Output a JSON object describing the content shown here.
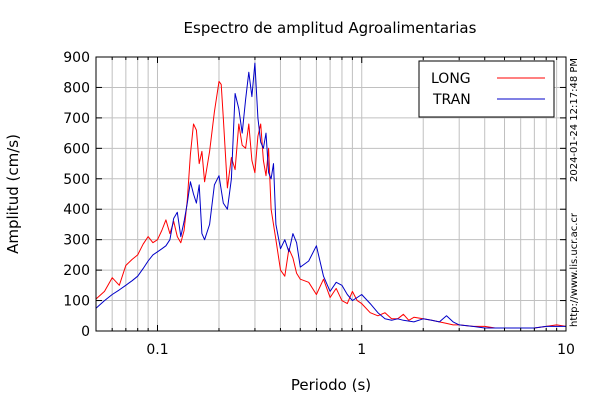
{
  "chart_data": {
    "type": "line",
    "title": "Espectro de amplitud Agroalimentarias",
    "xlabel": "Periodo (s)",
    "ylabel": "Amplitud (cm/s)",
    "x_scale": "log",
    "xlim": [
      0.05,
      10
    ],
    "ylim": [
      0,
      900
    ],
    "x_ticks": [
      {
        "value": 0.1,
        "label": "0.1"
      },
      {
        "value": 1,
        "label": "1"
      },
      {
        "value": 10,
        "label": "10"
      }
    ],
    "y_ticks": [
      {
        "value": 0,
        "label": "0"
      },
      {
        "value": 100,
        "label": "100"
      },
      {
        "value": 200,
        "label": "200"
      },
      {
        "value": 300,
        "label": "300"
      },
      {
        "value": 400,
        "label": "400"
      },
      {
        "value": 500,
        "label": "500"
      },
      {
        "value": 600,
        "label": "600"
      },
      {
        "value": 700,
        "label": "700"
      },
      {
        "value": 800,
        "label": "800"
      },
      {
        "value": 900,
        "label": "900"
      }
    ],
    "grid": true,
    "legend_position": "top-right",
    "series": [
      {
        "name": "LONG",
        "color": "#ff0000",
        "x": [
          0.05,
          0.055,
          0.06,
          0.065,
          0.07,
          0.075,
          0.08,
          0.085,
          0.09,
          0.095,
          0.1,
          0.105,
          0.11,
          0.115,
          0.12,
          0.125,
          0.13,
          0.135,
          0.14,
          0.145,
          0.15,
          0.155,
          0.16,
          0.165,
          0.17,
          0.18,
          0.19,
          0.2,
          0.205,
          0.21,
          0.22,
          0.23,
          0.24,
          0.25,
          0.26,
          0.27,
          0.28,
          0.29,
          0.3,
          0.31,
          0.32,
          0.33,
          0.34,
          0.35,
          0.36,
          0.38,
          0.4,
          0.42,
          0.44,
          0.46,
          0.48,
          0.5,
          0.55,
          0.6,
          0.65,
          0.7,
          0.75,
          0.8,
          0.85,
          0.9,
          0.95,
          1.0,
          1.1,
          1.2,
          1.3,
          1.4,
          1.5,
          1.6,
          1.7,
          1.8,
          2.0,
          2.2,
          2.4,
          2.6,
          2.8,
          3.0,
          3.5,
          4.0,
          4.5,
          5.0,
          5.5,
          6.0,
          6.5,
          7.0,
          8.0,
          9.0,
          10.0
        ],
        "y": [
          105,
          130,
          175,
          150,
          215,
          235,
          250,
          285,
          310,
          290,
          300,
          330,
          365,
          320,
          360,
          310,
          290,
          330,
          430,
          580,
          680,
          660,
          550,
          590,
          490,
          590,
          720,
          820,
          810,
          700,
          470,
          570,
          530,
          680,
          610,
          600,
          680,
          560,
          520,
          640,
          680,
          560,
          510,
          600,
          400,
          300,
          200,
          180,
          270,
          240,
          190,
          170,
          160,
          120,
          170,
          110,
          140,
          100,
          90,
          130,
          100,
          90,
          60,
          50,
          60,
          40,
          40,
          55,
          35,
          45,
          40,
          35,
          30,
          25,
          20,
          20,
          15,
          15,
          10,
          10,
          10,
          10,
          10,
          10,
          15,
          20,
          15
        ]
      },
      {
        "name": "TRAN",
        "color": "#0000c8",
        "x": [
          0.05,
          0.055,
          0.06,
          0.065,
          0.07,
          0.075,
          0.08,
          0.085,
          0.09,
          0.095,
          0.1,
          0.105,
          0.11,
          0.115,
          0.12,
          0.125,
          0.13,
          0.135,
          0.14,
          0.145,
          0.15,
          0.155,
          0.16,
          0.165,
          0.17,
          0.18,
          0.19,
          0.2,
          0.21,
          0.22,
          0.23,
          0.24,
          0.25,
          0.26,
          0.27,
          0.28,
          0.29,
          0.3,
          0.31,
          0.32,
          0.33,
          0.34,
          0.35,
          0.36,
          0.37,
          0.38,
          0.4,
          0.42,
          0.44,
          0.46,
          0.48,
          0.5,
          0.55,
          0.6,
          0.65,
          0.7,
          0.75,
          0.8,
          0.85,
          0.9,
          0.95,
          1.0,
          1.1,
          1.2,
          1.3,
          1.4,
          1.5,
          1.6,
          1.8,
          2.0,
          2.2,
          2.4,
          2.6,
          2.8,
          3.0,
          3.5,
          4.0,
          4.5,
          5.0,
          6.0,
          7.0,
          8.0,
          9.0,
          10.0
        ],
        "y": [
          75,
          100,
          120,
          135,
          150,
          165,
          180,
          205,
          230,
          250,
          260,
          270,
          280,
          300,
          370,
          390,
          310,
          360,
          420,
          490,
          450,
          420,
          480,
          320,
          300,
          350,
          480,
          510,
          420,
          400,
          500,
          780,
          730,
          650,
          760,
          850,
          770,
          880,
          700,
          620,
          600,
          650,
          520,
          500,
          550,
          350,
          270,
          300,
          260,
          320,
          290,
          210,
          230,
          280,
          180,
          130,
          160,
          150,
          120,
          100,
          110,
          120,
          90,
          60,
          40,
          35,
          40,
          35,
          30,
          40,
          35,
          30,
          50,
          30,
          20,
          15,
          10,
          10,
          10,
          10,
          10,
          15,
          15,
          15
        ]
      }
    ]
  },
  "side_text": {
    "timestamp": "2024-01-24 12:17:48 PM",
    "url": "http://www.lis.ucr.ac.cr"
  },
  "colors": {
    "grid": "#c0c0c0",
    "axis": "#000000",
    "long": "#ff0000",
    "tran": "#0000c8"
  }
}
